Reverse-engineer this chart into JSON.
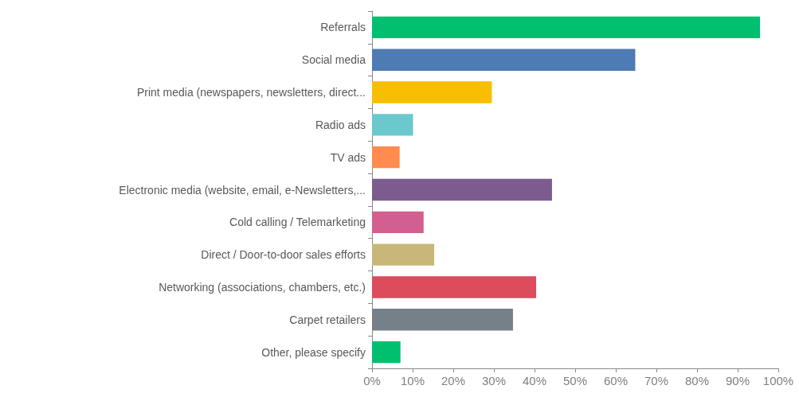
{
  "chart_data": {
    "type": "bar",
    "orientation": "horizontal",
    "categories": [
      "Referrals",
      "Social media",
      "Print media (newspapers, newsletters, direct...",
      "Radio ads",
      "TV ads",
      "Electronic media (website, email, e-Newsletters,...",
      "Cold calling / Telemarketing",
      "Direct / Door-to-door sales efforts",
      "Networking (associations, chambers, etc.)",
      "Carpet retailers",
      "Other, please specify"
    ],
    "values": [
      95.5,
      64.8,
      29.5,
      10.1,
      6.8,
      44.3,
      12.7,
      15.3,
      40.4,
      34.7,
      7.0
    ],
    "colors": [
      "#00bf6f",
      "#4e7bb4",
      "#f8be00",
      "#6bc8cd",
      "#ff8b4f",
      "#7c5c8e",
      "#d25f90",
      "#c7b879",
      "#dc4c5c",
      "#768088",
      "#00bf6f"
    ],
    "xlim": [
      0,
      100
    ],
    "xticks": [
      {
        "value": 0,
        "label": "0%"
      },
      {
        "value": 10,
        "label": "10%"
      },
      {
        "value": 20,
        "label": "20%"
      },
      {
        "value": 30,
        "label": "30%"
      },
      {
        "value": 40,
        "label": "40%"
      },
      {
        "value": 50,
        "label": "50%"
      },
      {
        "value": 60,
        "label": "60%"
      },
      {
        "value": 70,
        "label": "70%"
      },
      {
        "value": 80,
        "label": "80%"
      },
      {
        "value": 90,
        "label": "90%"
      },
      {
        "value": 100,
        "label": "100%"
      }
    ],
    "grid": false
  }
}
